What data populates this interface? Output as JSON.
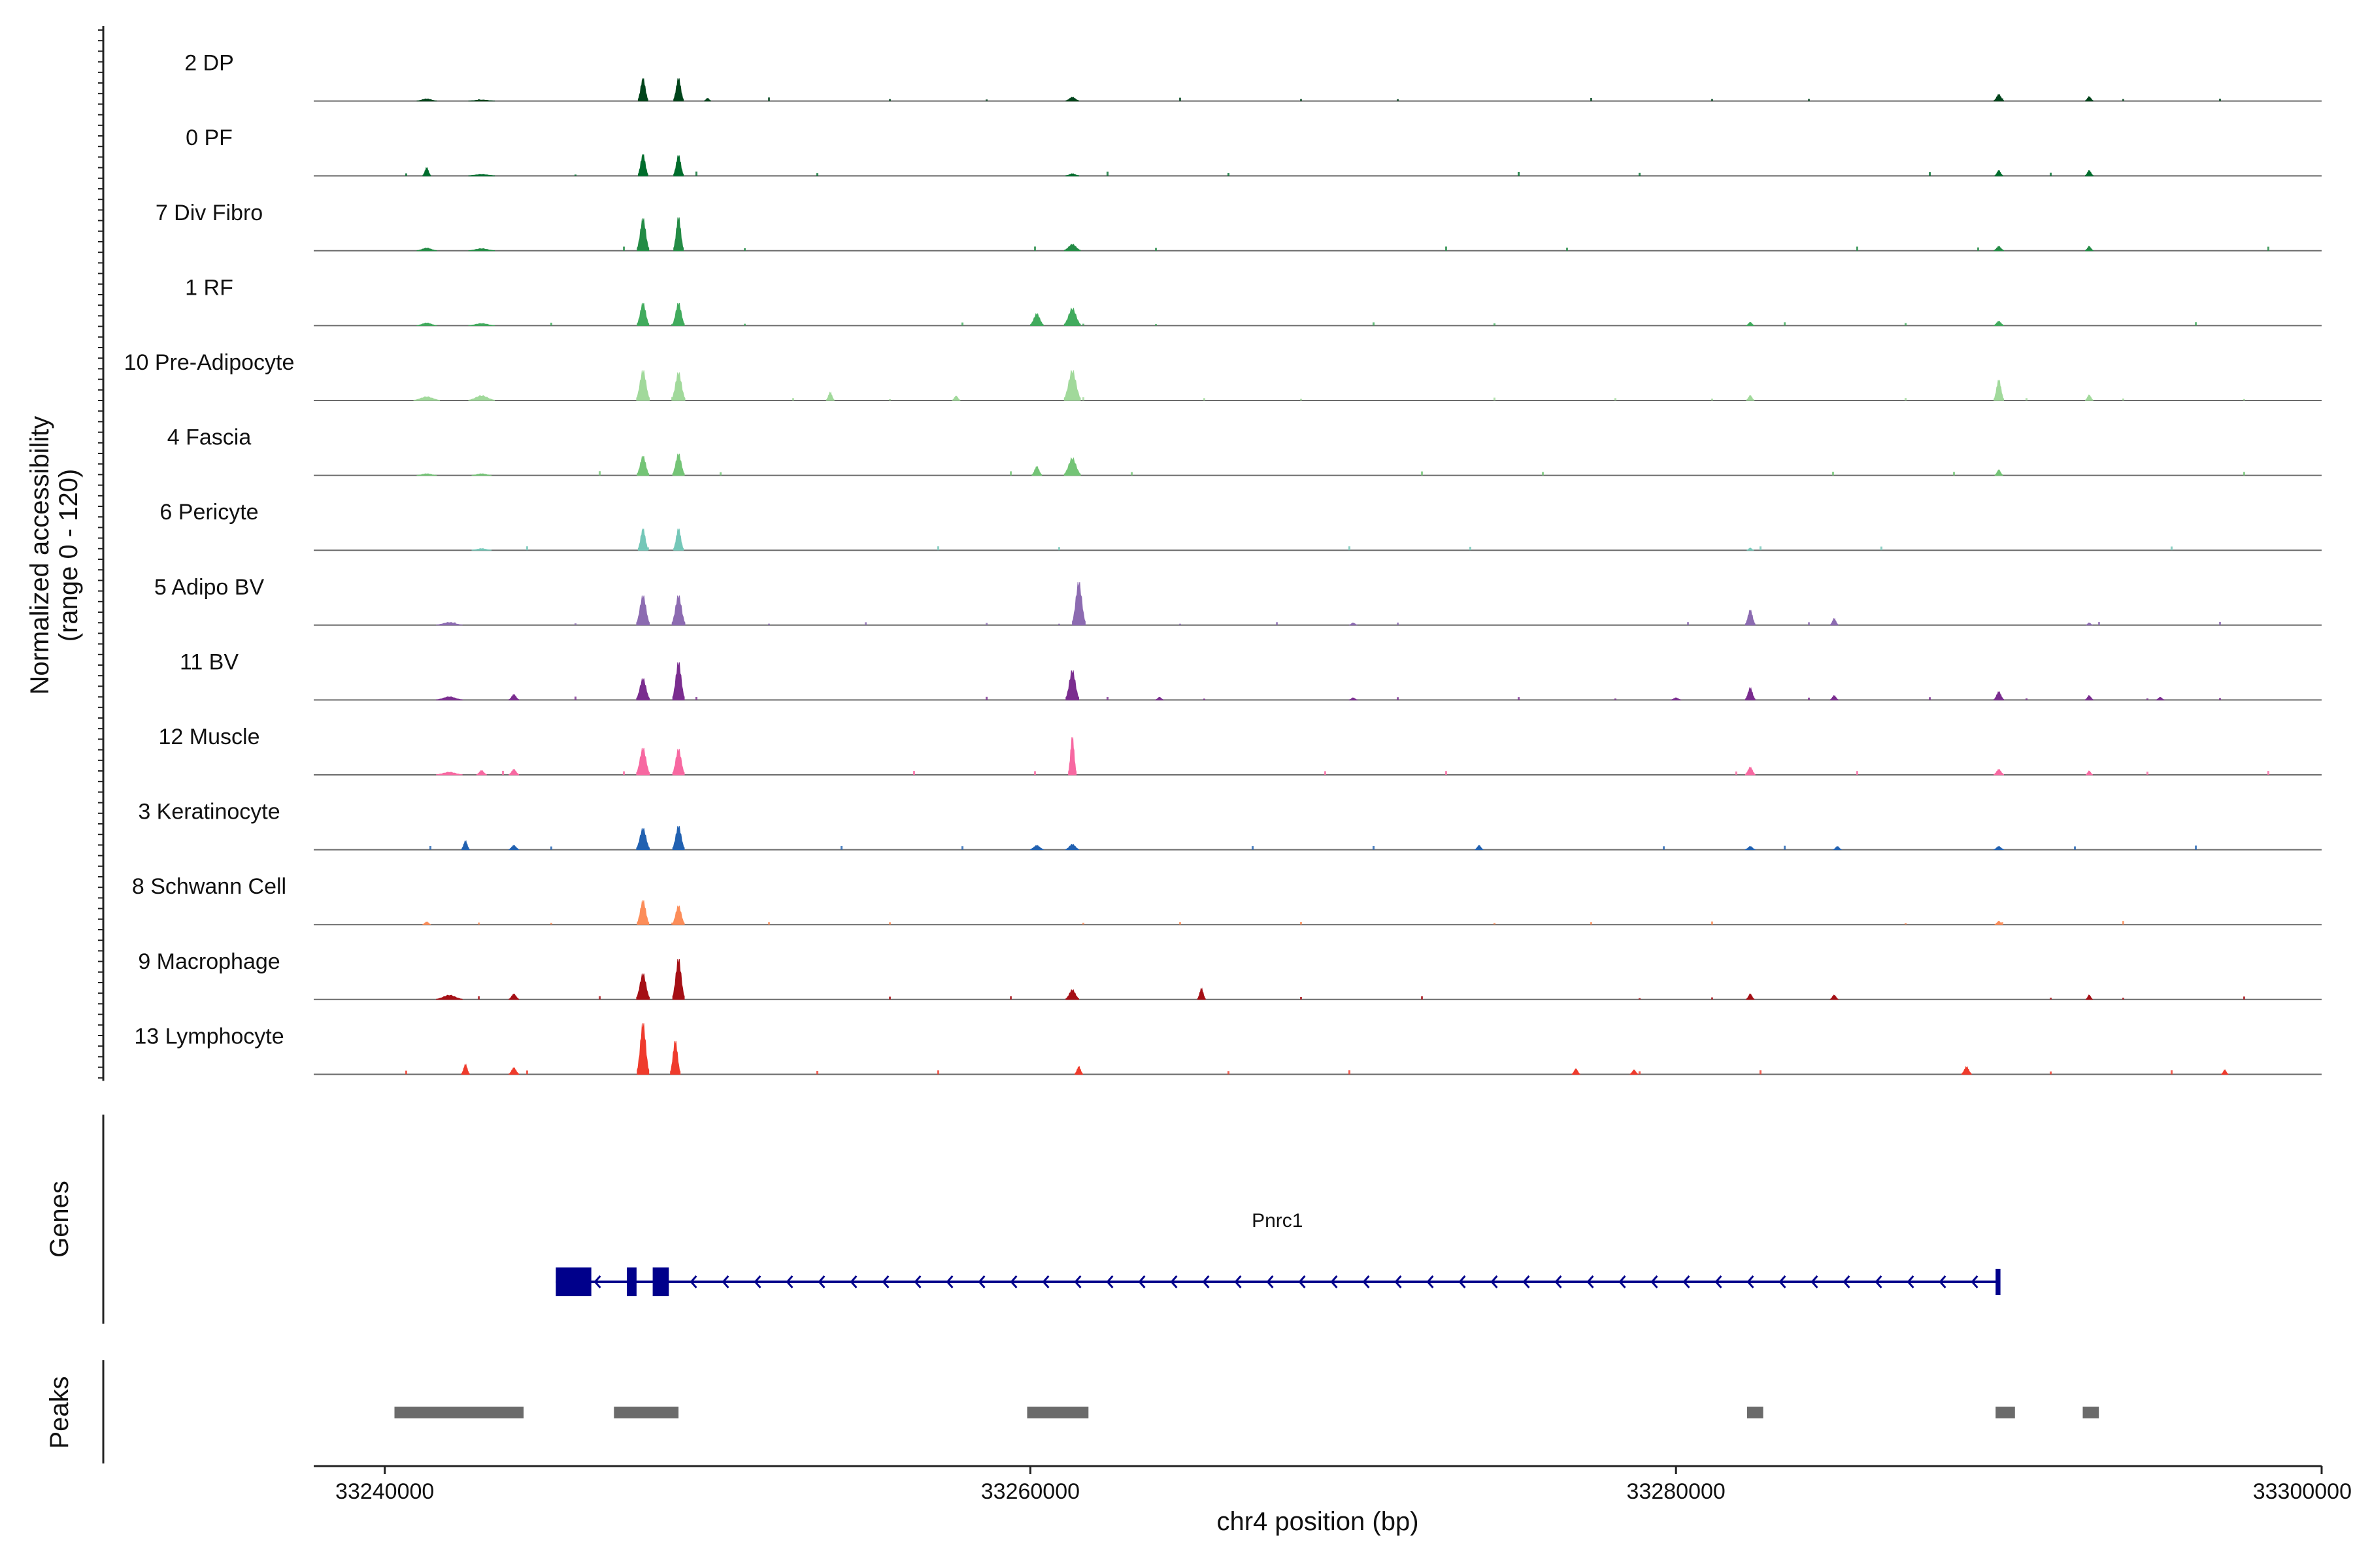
{
  "chart_data": {
    "type": "area",
    "title": "",
    "xlabel": "chr4 position (bp)",
    "ylabel": "Normalized accessibility\n(range 0 - 120)",
    "ylabel_lines": [
      "Normalized accessibility",
      "(range 0 - 120)"
    ],
    "ylim": [
      0,
      120
    ],
    "xlim": [
      33237800,
      33300000
    ],
    "xticks": [
      33240000,
      33260000,
      33280000,
      33300000
    ],
    "xtick_labels": [
      "33240000",
      "33260000",
      "33280000",
      "33300000"
    ],
    "series": [
      {
        "name": "2 DP",
        "color": "#00441b",
        "peaks": [
          [
            33241300,
            300,
            4
          ],
          [
            33243000,
            400,
            2
          ],
          [
            33248000,
            150,
            42
          ],
          [
            33249100,
            150,
            42
          ],
          [
            33250000,
            100,
            5
          ],
          [
            33261300,
            200,
            7
          ],
          [
            33290000,
            150,
            12
          ],
          [
            33292800,
            120,
            8
          ]
        ]
      },
      {
        "name": "0 PF",
        "color": "#006d2c",
        "peaks": [
          [
            33241300,
            120,
            15
          ],
          [
            33243000,
            400,
            3
          ],
          [
            33248000,
            150,
            40
          ],
          [
            33249100,
            150,
            38
          ],
          [
            33261300,
            200,
            4
          ],
          [
            33290000,
            120,
            10
          ],
          [
            33292800,
            120,
            10
          ]
        ]
      },
      {
        "name": "7 Div Fibro",
        "color": "#238b45",
        "peaks": [
          [
            33241300,
            300,
            5
          ],
          [
            33243000,
            400,
            4
          ],
          [
            33248000,
            180,
            60
          ],
          [
            33249100,
            150,
            62
          ],
          [
            33261300,
            250,
            12
          ],
          [
            33290000,
            150,
            8
          ],
          [
            33292800,
            120,
            8
          ]
        ]
      },
      {
        "name": "1 RF",
        "color": "#41ab5d",
        "peaks": [
          [
            33241300,
            300,
            5
          ],
          [
            33243000,
            400,
            4
          ],
          [
            33248000,
            180,
            42
          ],
          [
            33249100,
            180,
            42
          ],
          [
            33260200,
            200,
            22
          ],
          [
            33261300,
            250,
            32
          ],
          [
            33282300,
            120,
            6
          ],
          [
            33290000,
            150,
            8
          ]
        ]
      },
      {
        "name": "10 Pre-Adipocyte",
        "color": "#a1d99b",
        "peaks": [
          [
            33241300,
            400,
            7
          ],
          [
            33243000,
            400,
            9
          ],
          [
            33248000,
            200,
            56
          ],
          [
            33249100,
            200,
            52
          ],
          [
            33253800,
            120,
            15
          ],
          [
            33257700,
            120,
            8
          ],
          [
            33261300,
            250,
            56
          ],
          [
            33282300,
            120,
            9
          ],
          [
            33290000,
            150,
            38
          ],
          [
            33292800,
            120,
            10
          ]
        ]
      },
      {
        "name": "4 Fascia",
        "color": "#74c476",
        "peaks": [
          [
            33241300,
            300,
            3
          ],
          [
            33243000,
            300,
            3
          ],
          [
            33248000,
            180,
            36
          ],
          [
            33249100,
            180,
            40
          ],
          [
            33260200,
            150,
            16
          ],
          [
            33261300,
            250,
            32
          ],
          [
            33290000,
            120,
            10
          ]
        ]
      },
      {
        "name": "6 Pericyte",
        "color": "#74c7b8",
        "peaks": [
          [
            33243000,
            300,
            3
          ],
          [
            33248000,
            150,
            40
          ],
          [
            33249100,
            150,
            40
          ],
          [
            33282300,
            100,
            4
          ]
        ]
      },
      {
        "name": "5 Adipo BV",
        "color": "#8c6bb1",
        "peaks": [
          [
            33242000,
            400,
            5
          ],
          [
            33248000,
            200,
            55
          ],
          [
            33249100,
            200,
            55
          ],
          [
            33261500,
            200,
            80
          ],
          [
            33270000,
            120,
            4
          ],
          [
            33282300,
            150,
            28
          ],
          [
            33284900,
            120,
            12
          ],
          [
            33292800,
            100,
            4
          ]
        ]
      },
      {
        "name": "11 BV",
        "color": "#7a2d8f",
        "peaks": [
          [
            33242000,
            400,
            6
          ],
          [
            33244000,
            150,
            10
          ],
          [
            33248000,
            200,
            40
          ],
          [
            33249100,
            180,
            70
          ],
          [
            33261300,
            200,
            55
          ],
          [
            33264000,
            120,
            5
          ],
          [
            33270000,
            120,
            4
          ],
          [
            33280000,
            150,
            4
          ],
          [
            33282300,
            150,
            22
          ],
          [
            33284900,
            120,
            8
          ],
          [
            33290000,
            150,
            15
          ],
          [
            33292800,
            120,
            8
          ],
          [
            33295000,
            120,
            5
          ]
        ]
      },
      {
        "name": "12 Muscle",
        "color": "#f768a1",
        "peaks": [
          [
            33242000,
            400,
            5
          ],
          [
            33243000,
            150,
            8
          ],
          [
            33244000,
            150,
            10
          ],
          [
            33248000,
            200,
            50
          ],
          [
            33249100,
            180,
            48
          ],
          [
            33261300,
            120,
            70
          ],
          [
            33282300,
            150,
            14
          ],
          [
            33290000,
            150,
            10
          ],
          [
            33292800,
            100,
            7
          ]
        ]
      },
      {
        "name": "3 Keratinocyte",
        "color": "#2161b1",
        "peaks": [
          [
            33242500,
            120,
            16
          ],
          [
            33244000,
            150,
            8
          ],
          [
            33248000,
            200,
            40
          ],
          [
            33249100,
            180,
            44
          ],
          [
            33260200,
            200,
            8
          ],
          [
            33261300,
            200,
            10
          ],
          [
            33273900,
            120,
            8
          ],
          [
            33282300,
            150,
            6
          ],
          [
            33285000,
            120,
            6
          ],
          [
            33290000,
            150,
            6
          ]
        ]
      },
      {
        "name": "8 Schwann Cell",
        "color": "#fc8d59",
        "peaks": [
          [
            33241300,
            120,
            5
          ],
          [
            33248000,
            180,
            45
          ],
          [
            33249100,
            180,
            35
          ],
          [
            33290000,
            120,
            6
          ]
        ]
      },
      {
        "name": "9 Macrophage",
        "color": "#a50f15",
        "peaks": [
          [
            33242000,
            400,
            8
          ],
          [
            33244000,
            150,
            10
          ],
          [
            33248000,
            200,
            48
          ],
          [
            33249100,
            180,
            75
          ],
          [
            33261300,
            200,
            18
          ],
          [
            33265300,
            120,
            20
          ],
          [
            33282300,
            120,
            10
          ],
          [
            33284900,
            120,
            8
          ],
          [
            33292800,
            100,
            8
          ]
        ]
      },
      {
        "name": "13 Lymphocyte",
        "color": "#ef3b2c",
        "peaks": [
          [
            33242500,
            120,
            18
          ],
          [
            33244000,
            150,
            12
          ],
          [
            33248000,
            180,
            95
          ],
          [
            33249000,
            150,
            62
          ],
          [
            33261500,
            120,
            14
          ],
          [
            33276900,
            120,
            10
          ],
          [
            33278700,
            120,
            8
          ],
          [
            33289000,
            150,
            14
          ],
          [
            33297000,
            100,
            8
          ]
        ]
      }
    ],
    "genes": [
      {
        "name": "Pnrc1",
        "strand": "-",
        "start": 33245300,
        "end": 33290000,
        "exons": [
          [
            33245300,
            33246400
          ],
          [
            33247500,
            33247800
          ],
          [
            33248300,
            33248800
          ],
          [
            33289900,
            33290050
          ]
        ]
      }
    ],
    "peaks_track": [
      [
        33240300,
        33244300
      ],
      [
        33247100,
        33249100
      ],
      [
        33259900,
        33261800
      ],
      [
        33282200,
        33282700
      ],
      [
        33289900,
        33290500
      ],
      [
        33292600,
        33293100
      ]
    ],
    "genes_track_label": "Genes",
    "peaks_track_label": "Peaks"
  }
}
